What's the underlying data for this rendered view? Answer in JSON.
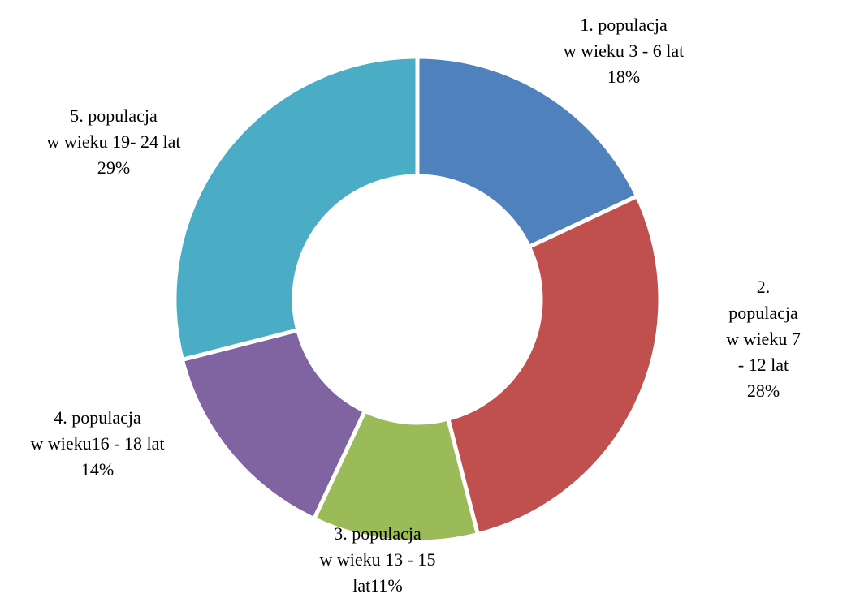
{
  "chart_data": {
    "type": "donut",
    "categories": [
      "1. populacja\nw wieku 3 - 6 lat",
      "2. populacja\nw wieku 7 - 12 lat",
      "3. populacja\nw wieku 13 - 15\nlat",
      "4. populacja\nw wieku16 - 18 lat",
      "5. populacja\nw wieku 19- 24 lat"
    ],
    "values": [
      18,
      28,
      11,
      14,
      29
    ],
    "value_labels": [
      "18%",
      "28%",
      "11%",
      "14%",
      "29%"
    ],
    "colors": [
      "#4f81bd",
      "#c0504d",
      "#9bbb59",
      "#8064a2",
      "#4bacc6"
    ]
  }
}
